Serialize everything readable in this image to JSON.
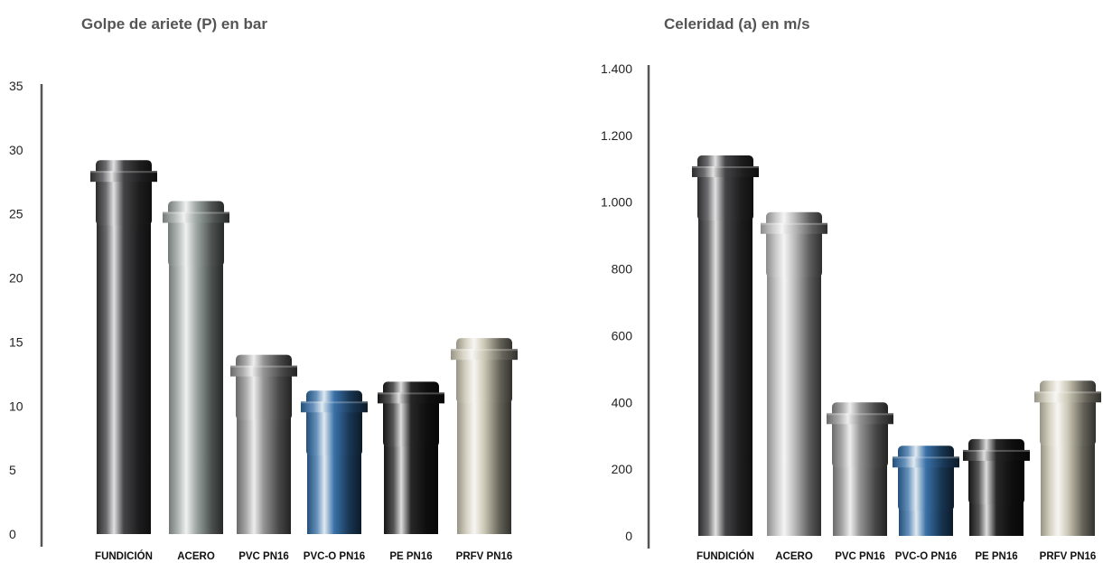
{
  "chart_data": [
    {
      "type": "bar",
      "title": "Golpe de ariete (P) en bar",
      "xlabel": "",
      "ylabel": "",
      "categories": [
        "FUNDICIÓN",
        "ACERO",
        "PVC PN16",
        "PVC-O PN16",
        "PE PN16",
        "PRFV PN16"
      ],
      "values": [
        29.2,
        26.0,
        14.0,
        11.2,
        11.9,
        15.3
      ],
      "ylim": [
        0,
        35
      ],
      "yticks": [
        0,
        5,
        10,
        15,
        20,
        25,
        30,
        35
      ],
      "ytick_labels": [
        "0",
        "5",
        "10",
        "15",
        "20",
        "25",
        "30",
        "35"
      ],
      "grid": false,
      "bar_colors": [
        "#3a3a3c",
        "#9aa3a0",
        "#8d8d8d",
        "#2f6aa3",
        "#1c1c1c",
        "#c9c5b2"
      ]
    },
    {
      "type": "bar",
      "title": "Celeridad (a) en m/s",
      "xlabel": "",
      "ylabel": "",
      "categories": [
        "FUNDICIÓN",
        "ACERO",
        "PVC PN16",
        "PVC-O PN16",
        "PE PN16",
        "PRFV PN16"
      ],
      "values": [
        1140,
        970,
        400,
        270,
        290,
        465
      ],
      "ylim": [
        0,
        1400
      ],
      "yticks": [
        0,
        200,
        400,
        600,
        800,
        1000,
        1200,
        1400
      ],
      "ytick_labels": [
        "0",
        "200",
        "400",
        "600",
        "800",
        "1.000",
        "1.200",
        "1.400"
      ],
      "grid": false,
      "bar_colors": [
        "#3a3a3c",
        "#b9b9b9",
        "#8d8d8d",
        "#2f6aa3",
        "#1c1c1c",
        "#c9c5b2"
      ]
    }
  ]
}
